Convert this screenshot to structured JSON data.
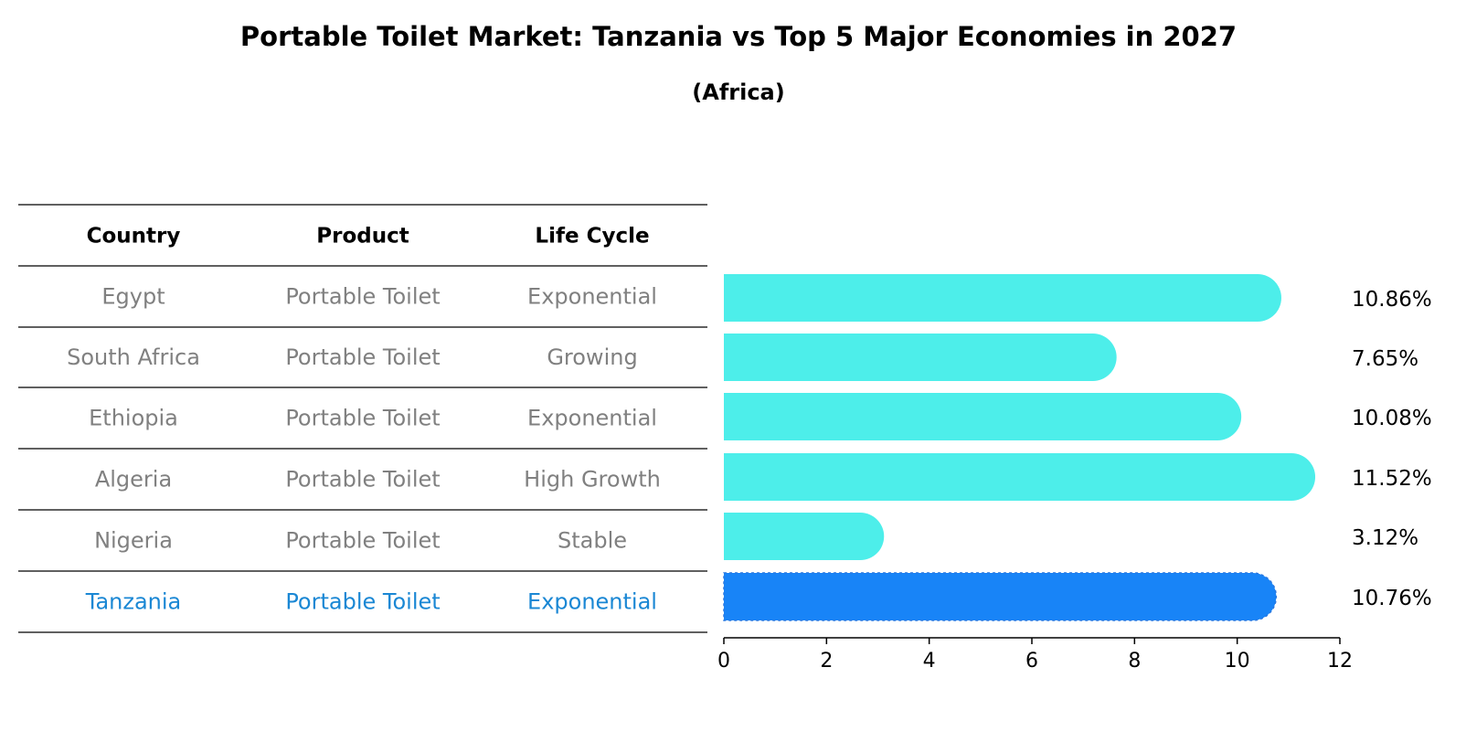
{
  "title": "Portable Toilet Market: Tanzania vs Top 5 Major Economies in 2027",
  "subtitle": "(Africa)",
  "table": {
    "headers": [
      "Country",
      "Product",
      "Life Cycle"
    ],
    "rows": [
      {
        "country": "Egypt",
        "product": "Portable Toilet",
        "life_cycle": "Exponential",
        "highlight": false
      },
      {
        "country": "South Africa",
        "product": "Portable Toilet",
        "life_cycle": "Growing",
        "highlight": false
      },
      {
        "country": "Ethiopia",
        "product": "Portable Toilet",
        "life_cycle": "Exponential",
        "highlight": false
      },
      {
        "country": "Algeria",
        "product": "Portable Toilet",
        "life_cycle": "High Growth",
        "highlight": false
      },
      {
        "country": "Nigeria",
        "product": "Portable Toilet",
        "life_cycle": "Stable",
        "highlight": false
      },
      {
        "country": "Tanzania",
        "product": "Portable Toilet",
        "life_cycle": "Exponential",
        "highlight": true
      }
    ]
  },
  "colors": {
    "bar": "#4deeea",
    "highlight_bar": "#1884f7",
    "highlight_text": "#1a87d4",
    "muted_text": "#808080",
    "text": "#000000"
  },
  "chart_data": {
    "type": "bar",
    "orientation": "horizontal",
    "title": "Portable Toilet Market: Tanzania vs Top 5 Major Economies in 2027",
    "subtitle": "(Africa)",
    "categories": [
      "Egypt",
      "South Africa",
      "Ethiopia",
      "Algeria",
      "Nigeria",
      "Tanzania"
    ],
    "values": [
      10.86,
      7.65,
      10.08,
      11.52,
      3.12,
      10.76
    ],
    "value_labels": [
      "10.86%",
      "7.65%",
      "10.08%",
      "11.52%",
      "3.12%",
      "10.76%"
    ],
    "highlight": "Tanzania",
    "xlim": [
      0,
      12
    ],
    "xticks": [
      0,
      2,
      4,
      6,
      8,
      10,
      12
    ],
    "xtick_labels": [
      "0",
      "2",
      "4",
      "6",
      "8",
      "10",
      "12"
    ],
    "grid": false,
    "xlabel": "",
    "ylabel": ""
  }
}
